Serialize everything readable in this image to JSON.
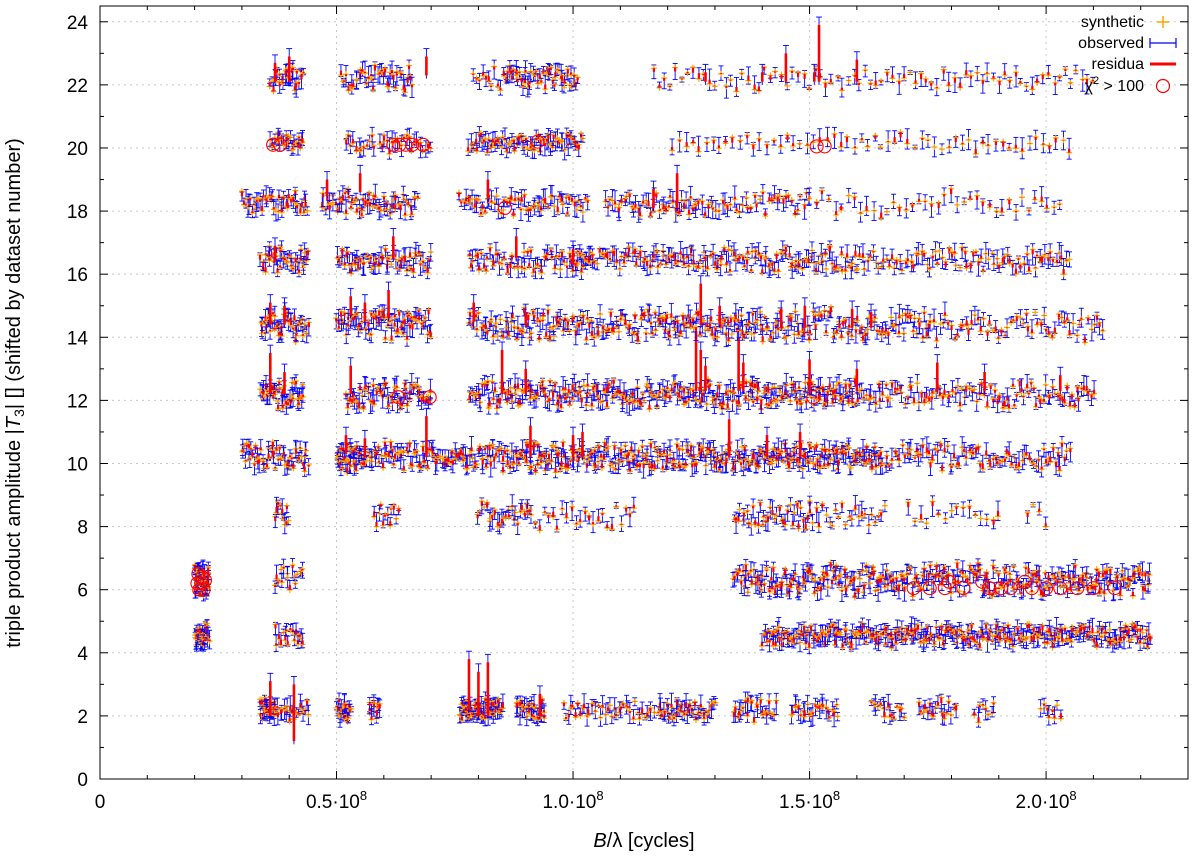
{
  "chart_data": {
    "type": "scatter",
    "title": "",
    "xlabel": "B/λ [cycles]",
    "ylabel": "triple product amplitude |T3| [] (shifted by dataset number)",
    "xlim": [
      0,
      230000000
    ],
    "ylim": [
      0,
      24.5
    ],
    "grid": true,
    "legend_position": "top-right",
    "x_ticks": [
      {
        "value": 0,
        "label": "0"
      },
      {
        "value": 50000000,
        "label": "0.5·10",
        "exp": "8"
      },
      {
        "value": 100000000,
        "label": "1.0·10",
        "exp": "8"
      },
      {
        "value": 150000000,
        "label": "1.5·10",
        "exp": "8"
      },
      {
        "value": 200000000,
        "label": "2.0·10",
        "exp": "8"
      }
    ],
    "y_ticks": [
      0,
      2,
      4,
      6,
      8,
      10,
      12,
      14,
      16,
      18,
      20,
      22,
      24
    ],
    "series": [
      {
        "name": "synthetic",
        "color": "#ffa500",
        "marker": "plus"
      },
      {
        "name": "observed",
        "color": "#0000ff",
        "marker": "errorbar"
      },
      {
        "name": "residua",
        "color": "#ff0000",
        "marker": "line"
      },
      {
        "name": "χ² > 100",
        "color": "#ff0000",
        "marker": "circle"
      }
    ],
    "legend": {
      "synthetic": "synthetic",
      "observed": "observed",
      "residua": "residua",
      "chi_prefix": "χ",
      "chi_sup": "2",
      "chi_suffix": " > 100"
    },
    "datasets": [
      {
        "level": 2.2,
        "spread": 0.25,
        "clusters": [
          [
            34,
            37,
            30
          ],
          [
            37,
            44,
            20
          ],
          [
            50,
            53,
            22
          ],
          [
            57,
            59,
            12
          ],
          [
            76,
            82,
            40
          ],
          [
            82,
            85,
            20
          ],
          [
            88,
            94,
            30
          ],
          [
            98,
            117,
            40
          ],
          [
            118,
            130,
            40
          ],
          [
            134,
            143,
            24
          ],
          [
            146,
            156,
            24
          ],
          [
            163,
            170,
            15
          ],
          [
            173,
            181,
            18
          ],
          [
            185,
            189,
            8
          ],
          [
            199,
            203,
            8
          ]
        ],
        "spikes": [
          [
            36,
            3.1,
            2.0
          ],
          [
            41,
            3.0,
            1.2
          ],
          [
            78,
            3.8,
            2.2
          ],
          [
            80,
            3.4,
            2.0
          ],
          [
            82,
            3.7,
            2.0
          ],
          [
            93,
            2.7,
            2.0
          ]
        ]
      },
      {
        "level": 4.55,
        "spread": 0.25,
        "clusters": [
          [
            20,
            23,
            30
          ],
          [
            37,
            43,
            16
          ],
          [
            140,
            222,
            300
          ]
        ],
        "spikes": []
      },
      {
        "level": 6.3,
        "spread": 0.4,
        "clusters": [
          [
            20,
            23,
            50
          ],
          [
            37,
            43,
            16
          ],
          [
            134,
            222,
            300
          ]
        ],
        "spikes": []
      },
      {
        "level": 8.35,
        "spread": 0.35,
        "clusters": [
          [
            37,
            40,
            10
          ],
          [
            58,
            63,
            12
          ],
          [
            80,
            91,
            26
          ],
          [
            91,
            113,
            24
          ],
          [
            134,
            150,
            36
          ],
          [
            150,
            166,
            24
          ],
          [
            171,
            190,
            16
          ],
          [
            196,
            200,
            4
          ]
        ],
        "spikes": []
      },
      {
        "level": 10.2,
        "spread": 0.35,
        "clusters": [
          [
            30,
            44,
            50
          ],
          [
            50,
            56,
            40
          ],
          [
            56,
            90,
            110
          ],
          [
            90,
            127,
            140
          ],
          [
            127,
            165,
            150
          ],
          [
            165,
            205,
            80
          ]
        ],
        "spikes": [
          [
            52,
            10.9,
            10.3
          ],
          [
            56,
            10.8,
            10.2
          ],
          [
            69,
            11.5,
            10.2
          ],
          [
            91,
            11.2,
            10.2
          ],
          [
            100,
            10.9,
            10.2
          ],
          [
            102,
            11.0,
            10.2
          ],
          [
            133,
            11.4,
            10.2
          ],
          [
            141,
            10.9,
            10.2
          ],
          [
            148,
            11.0,
            10.2
          ]
        ]
      },
      {
        "level": 12.2,
        "spread": 0.35,
        "clusters": [
          [
            34,
            43,
            40
          ],
          [
            52,
            70,
            60
          ],
          [
            78,
            116,
            120
          ],
          [
            116,
            138,
            70
          ],
          [
            138,
            160,
            80
          ],
          [
            160,
            210,
            100
          ]
        ],
        "spikes": [
          [
            36,
            13.5,
            12.2
          ],
          [
            39,
            12.9,
            12.2
          ],
          [
            53,
            13.1,
            12.2
          ],
          [
            85,
            13.6,
            12.2
          ],
          [
            90,
            13.0,
            12.2
          ],
          [
            126,
            14.2,
            12.3
          ],
          [
            127,
            13.6,
            12.3
          ],
          [
            128,
            13.1,
            12.3
          ],
          [
            135,
            14.0,
            12.3
          ],
          [
            136,
            13.2,
            12.3
          ],
          [
            150,
            13.3,
            12.3
          ],
          [
            160,
            13.0,
            12.3
          ],
          [
            177,
            13.2,
            12.3
          ],
          [
            187,
            12.9,
            12.3
          ],
          [
            203,
            12.8,
            12.3
          ]
        ]
      },
      {
        "level": 14.4,
        "spread": 0.4,
        "clusters": [
          [
            34,
            44,
            40
          ],
          [
            50,
            70,
            70
          ],
          [
            78,
            96,
            50
          ],
          [
            96,
            118,
            60
          ],
          [
            118,
            140,
            70
          ],
          [
            140,
            175,
            90
          ],
          [
            175,
            212,
            60
          ]
        ],
        "spikes": [
          [
            36,
            15.1,
            14.4
          ],
          [
            39,
            15.0,
            14.4
          ],
          [
            53,
            15.3,
            14.7
          ],
          [
            56,
            15.1,
            14.5
          ],
          [
            61,
            15.5,
            14.6
          ],
          [
            79,
            15.1,
            14.5
          ],
          [
            90,
            14.8,
            14.4
          ],
          [
            127,
            15.7,
            14.4
          ],
          [
            131,
            15.0,
            14.4
          ],
          [
            144,
            14.9,
            14.3
          ],
          [
            149,
            15.0,
            14.3
          ],
          [
            159,
            14.9,
            14.3
          ],
          [
            163,
            14.8,
            14.3
          ]
        ]
      },
      {
        "level": 16.45,
        "spread": 0.3,
        "clusters": [
          [
            34,
            44,
            36
          ],
          [
            50,
            70,
            60
          ],
          [
            78,
            104,
            60
          ],
          [
            100,
            118,
            40
          ],
          [
            118,
            160,
            100
          ],
          [
            160,
            205,
            80
          ]
        ],
        "spikes": [
          [
            37,
            16.9,
            16.4
          ],
          [
            62,
            17.2,
            16.5
          ],
          [
            88,
            17.2,
            16.5
          ],
          [
            100,
            16.8,
            16.3
          ]
        ]
      },
      {
        "level": 18.25,
        "spread": 0.3,
        "clusters": [
          [
            30,
            44,
            40
          ],
          [
            47,
            67,
            60
          ],
          [
            76,
            103,
            60
          ],
          [
            107,
            126,
            40
          ],
          [
            126,
            150,
            40
          ],
          [
            150,
            203,
            40
          ]
        ],
        "spikes": [
          [
            48,
            19.0,
            18.5
          ],
          [
            55,
            19.2,
            18.6
          ],
          [
            82,
            19.0,
            18.4
          ],
          [
            117,
            18.7,
            18.1
          ],
          [
            122,
            19.2,
            18.1
          ]
        ]
      },
      {
        "level": 20.15,
        "spread": 0.2,
        "clusters": [
          [
            36,
            43,
            24
          ],
          [
            52,
            58,
            12
          ],
          [
            59,
            70,
            20
          ],
          [
            78,
            102,
            70
          ],
          [
            121,
            205,
            60
          ]
        ],
        "spikes": []
      },
      {
        "level": 22.2,
        "spread": 0.3,
        "clusters": [
          [
            36,
            43,
            24
          ],
          [
            51,
            66,
            40
          ],
          [
            79,
            86,
            12
          ],
          [
            86,
            101,
            50
          ],
          [
            117,
            210,
            80
          ]
        ],
        "spikes": [
          [
            37,
            22.7,
            22.1
          ],
          [
            40,
            22.9,
            22.1
          ],
          [
            69,
            22.9,
            22.3
          ],
          [
            128,
            22.4,
            22.1
          ],
          [
            140,
            22.4,
            22.1
          ],
          [
            145,
            23.0,
            22.1
          ],
          [
            151,
            22.4,
            22.1
          ],
          [
            152,
            23.9,
            22.1
          ],
          [
            160,
            22.8,
            22.1
          ]
        ]
      }
    ],
    "outliers": [
      [
        20.6,
        6.2
      ],
      [
        21.0,
        6.0
      ],
      [
        21.4,
        6.2
      ],
      [
        21.9,
        6.0
      ],
      [
        22.2,
        6.3
      ],
      [
        20.8,
        6.5
      ],
      [
        21.6,
        6.4
      ],
      [
        36.6,
        20.1
      ],
      [
        38.1,
        20.1
      ],
      [
        62,
        20.1
      ],
      [
        63.3,
        20.1
      ],
      [
        64.6,
        20.1
      ],
      [
        66,
        20.1
      ],
      [
        68.3,
        20.1
      ],
      [
        151.5,
        20.05
      ],
      [
        153.2,
        20.05
      ],
      [
        63.1,
        12.1
      ],
      [
        69.7,
        12.1
      ],
      [
        150.8,
        12.1
      ],
      [
        85.6,
        18.1
      ],
      [
        92.5,
        20.2
      ],
      [
        172,
        6.05
      ],
      [
        175.4,
        6.05
      ],
      [
        178.6,
        6.05
      ],
      [
        182.5,
        6.05
      ],
      [
        188,
        6.05
      ],
      [
        190.5,
        6.05
      ],
      [
        192.5,
        6.05
      ],
      [
        197,
        6.05
      ],
      [
        200,
        6.05
      ],
      [
        203,
        6.05
      ],
      [
        206.6,
        6.05
      ],
      [
        210,
        6.05
      ],
      [
        214.5,
        6.05
      ],
      [
        179.5,
        6.25
      ],
      [
        186.5,
        6.25
      ],
      [
        195.5,
        6.25
      ]
    ]
  }
}
